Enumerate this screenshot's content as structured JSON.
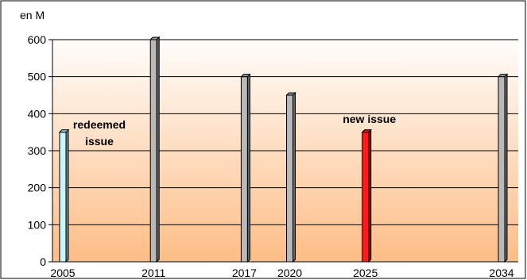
{
  "chart_data": {
    "type": "bar",
    "ylabel": "en M",
    "ylim": [
      0,
      600
    ],
    "yticks": [
      0,
      100,
      200,
      300,
      400,
      500,
      600
    ],
    "grid": true,
    "x": [
      2005,
      2011,
      2017,
      2020,
      2025,
      2034
    ],
    "xlim": [
      2005,
      2034
    ],
    "values": [
      350,
      600,
      500,
      450,
      350,
      500
    ],
    "bar_colors": [
      "#c8f6ff",
      "#b9b9b9",
      "#b9b9b9",
      "#b9b9b9",
      "#ff1a1a",
      "#b9b9b9"
    ],
    "annotations": [
      {
        "lines": [
          "redeemed",
          "issue"
        ],
        "x": 2005,
        "y": 360
      },
      {
        "lines": [
          "new issue"
        ],
        "x": 2025,
        "y": 375
      }
    ]
  },
  "colors": {
    "plot_top": "#fffdfb",
    "plot_bottom": "#fdbd86",
    "frame": "#000000",
    "grid": "#000000"
  }
}
